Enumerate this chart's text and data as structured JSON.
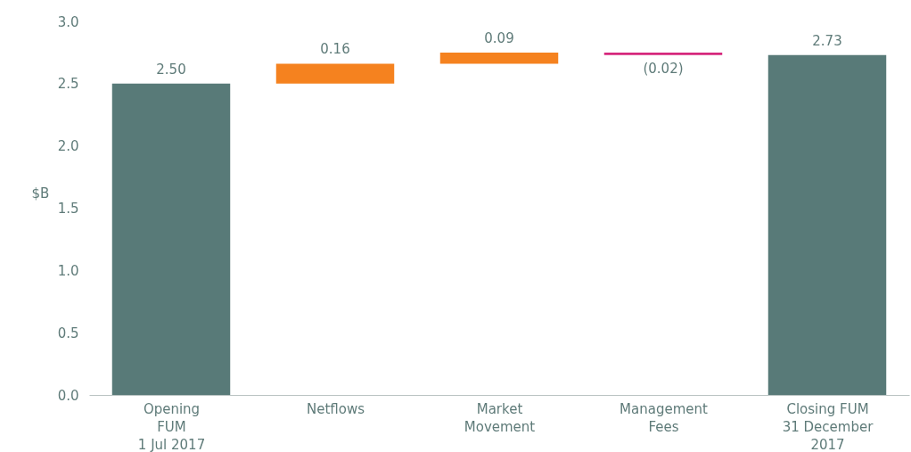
{
  "chart_data": {
    "type": "bar",
    "ylabel": "$B",
    "categories": [
      "Opening\nFUM\n1 Jul 2017",
      "Netflows",
      "Market\nMovement",
      "Management\nFees",
      "Closing FUM\n31 December\n2017"
    ],
    "values": [
      2.5,
      0.16,
      0.09,
      -0.02,
      2.73
    ],
    "base": [
      0,
      2.5,
      2.66,
      2.75,
      0
    ],
    "colors": [
      "#587a78",
      "#f5821f",
      "#f5821f",
      "#d6287c",
      "#587a78"
    ],
    "value_labels": [
      "2.50",
      "0.16",
      "0.09",
      "(0.02)",
      "2.73"
    ],
    "ylim": [
      0,
      3
    ],
    "yticks": [
      {
        "value": 0,
        "label": "0.0"
      },
      {
        "value": 0.5,
        "label": "0.5"
      },
      {
        "value": 1,
        "label": "1.0"
      },
      {
        "value": 1.5,
        "label": "1.5"
      },
      {
        "value": 2,
        "label": "2.0"
      },
      {
        "value": 2.5,
        "label": "2.5"
      },
      {
        "value": 3,
        "label": "3.0"
      }
    ],
    "grid": false
  }
}
